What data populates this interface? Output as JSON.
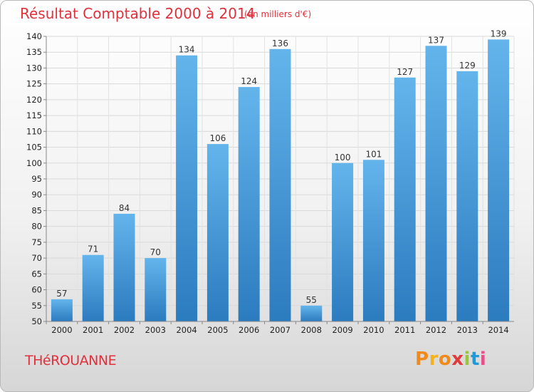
{
  "header": {
    "title": "Résultat Comptable 2000 à 2014",
    "unit": "(en milliers d'€)"
  },
  "footer": {
    "city": "THéROUANNE",
    "logo_letters": [
      "P",
      "r",
      "o",
      "x",
      "i",
      "t",
      "i"
    ],
    "logo_colors": [
      "#f08a1c",
      "#f5b21b",
      "#f08a1c",
      "#e23a3a",
      "#9bc53d",
      "#1f9ad6",
      "#e94e8a"
    ]
  },
  "colors": {
    "bar_top": "#64b4ec",
    "bar_bottom": "#2b7bbf",
    "title": "#e0303c"
  },
  "chart_data": {
    "type": "bar",
    "title": "Résultat Comptable 2000 à 2014",
    "subtitle": "(en milliers d'€)",
    "xlabel": "",
    "ylabel": "",
    "categories": [
      "2000",
      "2001",
      "2002",
      "2003",
      "2004",
      "2005",
      "2006",
      "2007",
      "2008",
      "2009",
      "2010",
      "2011",
      "2012",
      "2013",
      "2014"
    ],
    "values": [
      57,
      71,
      84,
      70,
      134,
      106,
      124,
      136,
      55,
      100,
      101,
      127,
      137,
      129,
      139
    ],
    "ylim": [
      50,
      140
    ],
    "yticks": [
      50,
      55,
      60,
      65,
      70,
      75,
      80,
      85,
      90,
      95,
      100,
      105,
      110,
      115,
      120,
      125,
      130,
      135,
      140
    ],
    "grid": true,
    "legend": "none"
  }
}
